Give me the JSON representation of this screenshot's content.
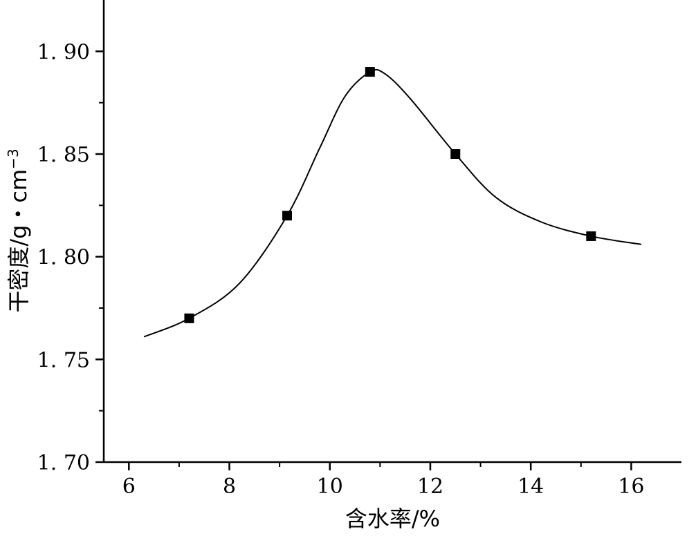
{
  "chart_data": {
    "type": "line",
    "title": "",
    "xlabel": "含水率/%",
    "ylabel": "干密度/g・cm",
    "ylabel_superscript": "−3",
    "xlim": [
      5.5,
      17
    ],
    "ylim": [
      1.7,
      1.925
    ],
    "x_ticks": [
      6,
      8,
      10,
      12,
      14,
      16
    ],
    "x_tick_labels": [
      "6",
      "8",
      "10",
      "12",
      "14",
      "16"
    ],
    "y_ticks": [
      1.7,
      1.75,
      1.8,
      1.85,
      1.9
    ],
    "y_tick_labels": [
      "1. 70",
      "1. 75",
      "1. 80",
      "1. 85",
      "1. 90"
    ],
    "grid": false,
    "series": [
      {
        "marker": "square",
        "x": [
          7.2,
          9.15,
          10.8,
          12.5,
          15.2
        ],
        "y": [
          1.77,
          1.82,
          1.89,
          1.85,
          1.81
        ]
      }
    ],
    "fit_curve": {
      "x": [
        6.3,
        7.2,
        8.2,
        9.15,
        9.8,
        10.3,
        10.8,
        11.1,
        11.6,
        12.5,
        13.3,
        14.2,
        15.2,
        16.2
      ],
      "y": [
        1.761,
        1.77,
        1.787,
        1.82,
        1.853,
        1.878,
        1.89,
        1.889,
        1.877,
        1.85,
        1.829,
        1.817,
        1.81,
        1.806
      ]
    }
  }
}
